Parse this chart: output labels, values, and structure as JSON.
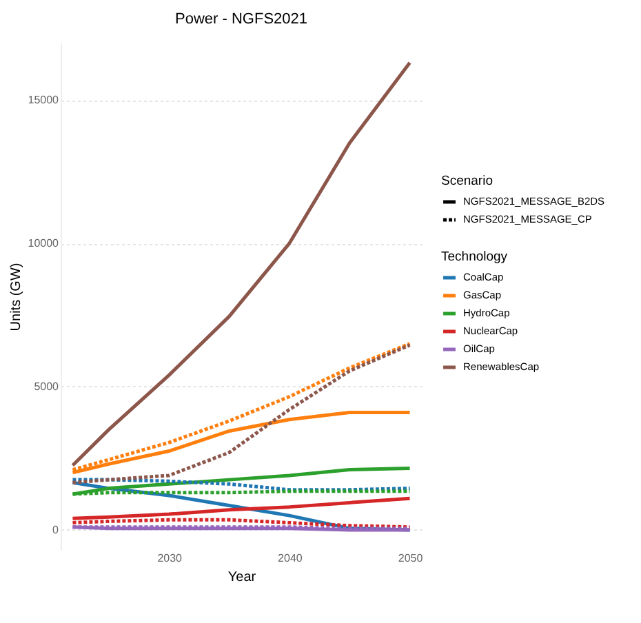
{
  "chart_data": {
    "type": "line",
    "title": "Power - NGFS2021",
    "xlabel": "Year",
    "ylabel": "Units (GW)",
    "legend_title": "Technology",
    "annotations": [
      "Scenario",
      "NGFS2021_MESSAGE_B2DS",
      "NGFS2021_MESSAGE_CP"
    ],
    "x": [
      2022,
      2025,
      2030,
      2035,
      2040,
      2045,
      2050
    ],
    "xlim": [
      2021,
      2051
    ],
    "xticks": [
      2030,
      2040,
      2050
    ],
    "ylim": [
      -700,
      17000
    ],
    "yticks": [
      0,
      5000,
      10000,
      15000
    ],
    "grid": "y",
    "legend": "right",
    "series": [
      {
        "name": "CoalCap",
        "line_style": "solid",
        "color": "#1f77b4",
        "values": [
          1650,
          1450,
          1200,
          850,
          500,
          50,
          0
        ]
      },
      {
        "name": "GasCap",
        "line_style": "solid",
        "color": "#ff7f0e",
        "values": [
          2000,
          2300,
          2750,
          3450,
          3850,
          4100,
          4100
        ]
      },
      {
        "name": "HydroCap",
        "line_style": "solid",
        "color": "#2ca02c",
        "values": [
          1250,
          1450,
          1600,
          1750,
          1900,
          2100,
          2150
        ]
      },
      {
        "name": "NuclearCap",
        "line_style": "solid",
        "color": "#d62728",
        "values": [
          400,
          450,
          550,
          700,
          800,
          950,
          1100
        ]
      },
      {
        "name": "OilCap",
        "line_style": "solid",
        "color": "#9467bd",
        "values": [
          100,
          50,
          50,
          50,
          50,
          0,
          0
        ]
      },
      {
        "name": "RenewablesCap",
        "line_style": "solid",
        "color": "#8c564b",
        "values": [
          2250,
          3500,
          5400,
          7450,
          10000,
          13500,
          16300
        ]
      },
      {
        "line_style": "dashed",
        "color": "#1f77b4",
        "values": [
          1750,
          1750,
          1700,
          1600,
          1400,
          1400,
          1450
        ]
      },
      {
        "line_style": "dashed",
        "color": "#ff7f0e",
        "values": [
          2100,
          2450,
          3050,
          3800,
          4650,
          5650,
          6500
        ]
      },
      {
        "line_style": "dashed",
        "color": "#2ca02c",
        "values": [
          1250,
          1300,
          1300,
          1300,
          1350,
          1350,
          1350
        ]
      },
      {
        "line_style": "dashed",
        "color": "#d62728",
        "values": [
          250,
          300,
          350,
          350,
          250,
          150,
          100
        ]
      },
      {
        "line_style": "dashed",
        "color": "#9467bd",
        "values": [
          100,
          100,
          100,
          100,
          100,
          50,
          50
        ]
      },
      {
        "line_style": "dashed",
        "color": "#8c564b",
        "values": [
          1650,
          1750,
          1900,
          2700,
          4200,
          5550,
          6450
        ]
      }
    ]
  }
}
